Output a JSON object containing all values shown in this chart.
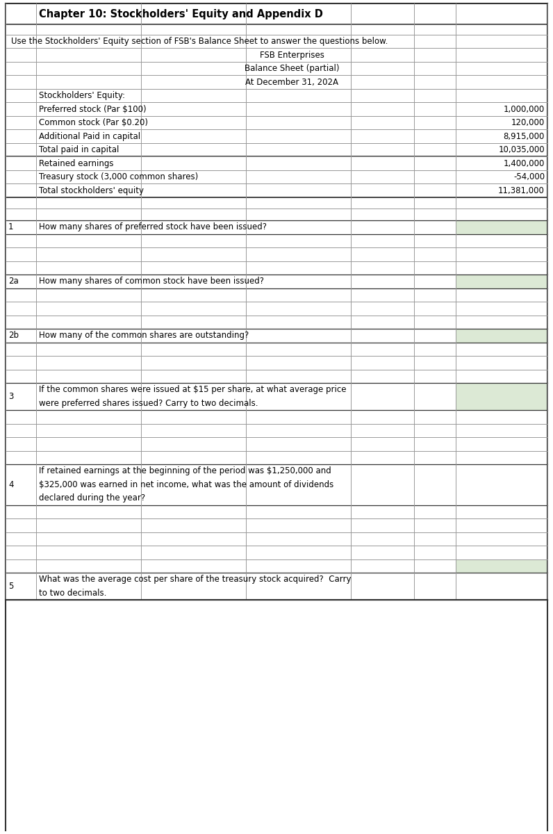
{
  "title": "Chapter 10: Stockholders' Equity and Appendix D",
  "instruction": "Use the Stockholders' Equity section of FSB's Balance Sheet to answer the questions below.",
  "company": "FSB Enterprises",
  "sheet_title": "Balance Sheet (partial)",
  "sheet_date": "At December 31, 202A",
  "balance_sheet_rows": [
    {
      "label": "Stockholders' Equity:",
      "value": null
    },
    {
      "label": "Preferred stock (Par $100)",
      "value": "1,000,000"
    },
    {
      "label": "Common stock (Par $0.20)",
      "value": "120,000"
    },
    {
      "label": "Additional Paid in capital",
      "value": "8,915,000"
    },
    {
      "label": "Total paid in capital",
      "value": "10,035,000"
    },
    {
      "label": "Retained earnings",
      "value": "1,400,000"
    },
    {
      "label": "Treasury stock (3,000 common shares)",
      "value": "-54,000"
    },
    {
      "label": "Total stockholders' equity",
      "value": "11,381,000"
    }
  ],
  "bg_color": "#ffffff",
  "green_bg": "#dce9d5",
  "grid_light": "#999999",
  "grid_dark": "#333333"
}
